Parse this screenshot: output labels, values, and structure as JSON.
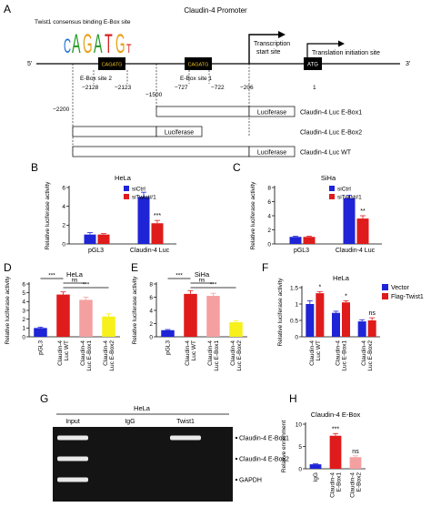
{
  "figure": {
    "panels": {
      "A": "A",
      "B": "B",
      "C": "C",
      "D": "D",
      "E": "E",
      "F": "F",
      "G": "G",
      "H": "H"
    }
  },
  "promoter": {
    "title": "Claudin-4 Promoter",
    "logo_caption": "Twist1 consensus binding E-Box site",
    "logo_letters": [
      "C",
      "A",
      "G",
      "A",
      "T",
      "G",
      "T"
    ],
    "five_prime": "5'",
    "three_prime": "3'",
    "ebox_label": "CAGATG",
    "ebox2_label": "E-Box site 2",
    "ebox1_label": "E-Box site 1",
    "atg_label": "ATG",
    "tss_label": "Transcription start site",
    "tss_line1": "Transcription",
    "tss_line2": "start site",
    "tis_label": "Translation initiation site",
    "coords": {
      "c2128": "−2128",
      "c2123": "−2123",
      "c1500": "−1500",
      "c727": "−727",
      "c722": "−722",
      "c206": "−206",
      "c1": "1",
      "c2200": "−2200"
    },
    "constructs": [
      {
        "name": "Claudin-4 Luc E-Box1",
        "reporter": "Luciferase"
      },
      {
        "name": "Claudin-4 Luc E-Box2",
        "reporter": "Luciferase"
      },
      {
        "name": "Claudin-4 Luc WT",
        "reporter": "Luciferase"
      }
    ]
  },
  "chart_data": [
    {
      "panel": "B",
      "type": "bar",
      "title": "HeLa",
      "ylabel": "Relative luciferase activity",
      "ylim": [
        0,
        6
      ],
      "yticks": [
        0,
        2,
        4,
        6
      ],
      "categories": [
        "pGL3",
        "Claudin-4 Luc"
      ],
      "series": [
        {
          "name": "siCtrl",
          "color": "#1f24d6",
          "values": [
            1.0,
            5.0
          ],
          "errors": [
            0.2,
            0.5
          ]
        },
        {
          "name": "siTwist#1",
          "color": "#e01b1b",
          "values": [
            1.0,
            2.2
          ],
          "errors": [
            0.1,
            0.3
          ]
        }
      ],
      "annotations": [
        {
          "category": 1,
          "series": 1,
          "text": "***"
        }
      ]
    },
    {
      "panel": "C",
      "type": "bar",
      "title": "SiHa",
      "ylabel": "Relative luciferase activity",
      "ylim": [
        0,
        8
      ],
      "yticks": [
        0,
        2,
        4,
        6,
        8
      ],
      "categories": [
        "pGL3",
        "Claudin-4 Luc"
      ],
      "series": [
        {
          "name": "siCtrl",
          "color": "#1f24d6",
          "values": [
            1.0,
            6.5
          ],
          "errors": [
            0.1,
            0.4
          ]
        },
        {
          "name": "siTwist#1",
          "color": "#e01b1b",
          "values": [
            1.0,
            3.6
          ],
          "errors": [
            0.1,
            0.4
          ]
        }
      ],
      "annotations": [
        {
          "category": 1,
          "series": 1,
          "text": "**"
        }
      ]
    },
    {
      "panel": "D",
      "type": "bar",
      "title": "HeLa",
      "ylabel": "Relative luciferase activity",
      "ylim": [
        0,
        6
      ],
      "yticks": [
        0,
        1,
        2,
        3,
        4,
        5,
        6
      ],
      "categories": [
        "pGL3",
        "Claudin-4 Luc WT",
        "Claudin-4 Luc E-Box1",
        "Claudin-4 Luc E-Box2"
      ],
      "category_lines": [
        [
          "pGL3"
        ],
        [
          "Claudin-4",
          "Luc WT"
        ],
        [
          "Claudin-4",
          "Luc E-Box1"
        ],
        [
          "Claudin-4",
          "Luc E-Box2"
        ]
      ],
      "values": [
        1.0,
        4.8,
        4.2,
        2.3
      ],
      "errors": [
        0.1,
        0.3,
        0.3,
        0.3
      ],
      "colors": [
        "#1f24d6",
        "#e01b1b",
        "#f4a0a0",
        "#f7f01a"
      ],
      "brackets": [
        {
          "from": 0,
          "to": 1,
          "text": "***",
          "level": 0
        },
        {
          "from": 1,
          "to": 2,
          "text": "ns",
          "level": 1
        },
        {
          "from": 1,
          "to": 3,
          "text": "***",
          "level": 2
        }
      ]
    },
    {
      "panel": "E",
      "type": "bar",
      "title": "SiHa",
      "ylabel": "Relative luciferase activity",
      "ylim": [
        0,
        8
      ],
      "yticks": [
        0,
        2,
        4,
        6,
        8
      ],
      "categories": [
        "pGL3",
        "Claudin-4 Luc WT",
        "Claudin-4 Luc E-Box1",
        "Claudin-4 Luc E-Box2"
      ],
      "category_lines": [
        [
          "pGL3"
        ],
        [
          "Claudin-4",
          "Luc WT"
        ],
        [
          "Claudin-4",
          "Luc E-Box1"
        ],
        [
          "Claudin-4",
          "Luc E-Box2"
        ]
      ],
      "values": [
        1.0,
        6.5,
        6.2,
        2.2
      ],
      "errors": [
        0.1,
        0.5,
        0.4,
        0.2
      ],
      "colors": [
        "#1f24d6",
        "#e01b1b",
        "#f4a0a0",
        "#f7f01a"
      ],
      "brackets": [
        {
          "from": 0,
          "to": 1,
          "text": "***",
          "level": 0
        },
        {
          "from": 1,
          "to": 2,
          "text": "ns",
          "level": 1
        },
        {
          "from": 1,
          "to": 3,
          "text": "***",
          "level": 2
        }
      ]
    },
    {
      "panel": "F",
      "type": "bar",
      "title": "HeLa",
      "ylabel": "Relative luciferase activity",
      "ylim": [
        0,
        1.5
      ],
      "yticks": [
        0,
        0.5,
        1.0,
        1.5
      ],
      "categories": [
        "Claudin-4 Luc WT",
        "Claudin-4 Luc E-Box1",
        "Claudin-4 Luc E-Box2"
      ],
      "category_lines": [
        [
          "Claudin-4",
          "Luc WT"
        ],
        [
          "Claudin-4",
          "Luc E-Box1"
        ],
        [
          "Claudin-4",
          "Luc E-Box2"
        ]
      ],
      "series": [
        {
          "name": "Vector",
          "color": "#1f24d6",
          "values": [
            1.0,
            0.73,
            0.47
          ],
          "errors": [
            0.1,
            0.05,
            0.05
          ]
        },
        {
          "name": "Flag-Twist1",
          "color": "#e01b1b",
          "values": [
            1.33,
            1.05,
            0.5
          ],
          "errors": [
            0.05,
            0.05,
            0.08
          ]
        }
      ],
      "annotations": [
        {
          "category": 0,
          "series": 1,
          "text": "*"
        },
        {
          "category": 1,
          "series": 1,
          "text": "*"
        },
        {
          "category": 2,
          "series": 1,
          "text": "ns"
        }
      ]
    },
    {
      "panel": "H",
      "type": "bar",
      "title": "Claudin-4 E-Box",
      "ylabel": "Relative enrichment",
      "ylim": [
        0,
        10
      ],
      "yticks": [
        0,
        5,
        10
      ],
      "categories": [
        "IgG",
        "Claudin-4 E-Box1",
        "Claudin-4 E-Box2"
      ],
      "category_lines": [
        [
          "IgG"
        ],
        [
          "Claudin-4",
          "E-Box1"
        ],
        [
          "Claudin-4",
          "E-Box2"
        ]
      ],
      "values": [
        1.0,
        7.4,
        2.6
      ],
      "errors": [
        0.1,
        0.5,
        0.3
      ],
      "colors": [
        "#1f24d6",
        "#e01b1b",
        "#f4a0a0"
      ],
      "annotations": [
        {
          "category": 1,
          "text": "***"
        },
        {
          "category": 2,
          "text": "ns"
        }
      ]
    }
  ],
  "gel": {
    "cell": "HeLa",
    "lanes": [
      "Input",
      "IgG",
      "Twist1"
    ],
    "rows": [
      {
        "label": "Claudin-4 E-Box1",
        "bands": [
          1,
          0,
          1
        ]
      },
      {
        "label": "Claudin-4 E-Box2",
        "bands": [
          1,
          0,
          0
        ]
      },
      {
        "label": "GAPDH",
        "bands": [
          1,
          0,
          0
        ]
      }
    ]
  }
}
